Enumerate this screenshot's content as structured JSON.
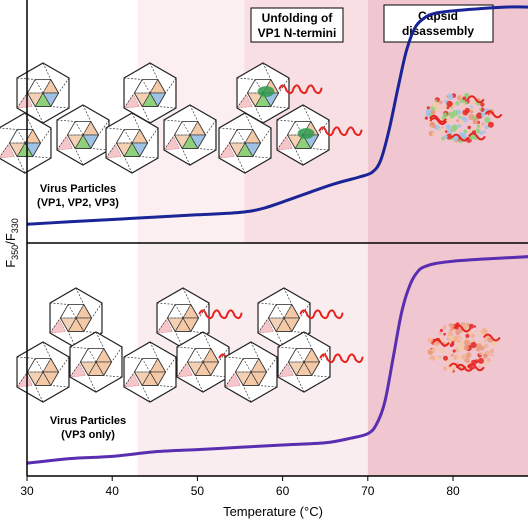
{
  "chart_data": [
    {
      "type": "line",
      "panel": "top",
      "xlabel": "Temperature (°C)",
      "ylabel": "F350/F330",
      "xlim": [
        30,
        89
      ],
      "series": [
        {
          "color": "#1a2496",
          "x": [
            30,
            35,
            40,
            45,
            50,
            55,
            58,
            62,
            66,
            69,
            70.5,
            71.5,
            72.5,
            73.5,
            74.5,
            75.5,
            76.5,
            77.5,
            79,
            82,
            86,
            89
          ],
          "y": [
            0.05,
            0.06,
            0.07,
            0.08,
            0.09,
            0.1,
            0.12,
            0.17,
            0.22,
            0.25,
            0.27,
            0.32,
            0.45,
            0.62,
            0.78,
            0.88,
            0.92,
            0.94,
            0.95,
            0.96,
            0.97,
            0.97
          ]
        }
      ],
      "annotations": [
        "Virus Particles",
        "(VP1, VP2, VP3)",
        "Unfolding of",
        "VP1 N-termini",
        "Capsid",
        "disassembly"
      ]
    },
    {
      "type": "line",
      "panel": "bottom",
      "xlabel": "Temperature (°C)",
      "ylabel": "F350/F330",
      "xlim": [
        30,
        89
      ],
      "series": [
        {
          "color": "#5a2eb0",
          "x": [
            30,
            35,
            40,
            45,
            50,
            55,
            60,
            65,
            68,
            70,
            71,
            72,
            73,
            74,
            75,
            76,
            77,
            78,
            80,
            84,
            89
          ],
          "y": [
            0.03,
            0.05,
            0.06,
            0.08,
            0.09,
            0.1,
            0.11,
            0.12,
            0.14,
            0.16,
            0.2,
            0.3,
            0.5,
            0.7,
            0.82,
            0.88,
            0.9,
            0.91,
            0.92,
            0.93,
            0.94
          ]
        }
      ],
      "annotations": [
        "Virus Particles",
        "(VP3 only)"
      ]
    }
  ],
  "x_ticks": [
    "30",
    "40",
    "50",
    "60",
    "70",
    "80"
  ],
  "x_tick_values": [
    30,
    40,
    50,
    60,
    70,
    80
  ],
  "axis": {
    "xlabel": "Temperature (°C)",
    "ylabel_main": "F",
    "ylabel_sub1": "350",
    "ylabel_slash": "/F",
    "ylabel_sub2": "330"
  },
  "regions": {
    "shading": [
      {
        "from": 43,
        "to": 55.5,
        "color": "#fbeff1",
        "panel": "top"
      },
      {
        "from": 55.5,
        "to": 70,
        "color": "#f7dfe4",
        "panel": "top"
      },
      {
        "from": 43,
        "to": 70,
        "color": "#faedf0",
        "panel": "bottom"
      },
      {
        "from": 70,
        "to": 89,
        "color": "#f0c6d1",
        "panel": "both"
      }
    ]
  },
  "labels": {
    "unfolding_line1": "Unfolding of",
    "unfolding_line2": "VP1 N-termini",
    "capsid_line1": "Capsid",
    "capsid_line2": "disassembly",
    "top_vp_line1": "Virus Particles",
    "top_vp_line2": "(VP1, VP2, VP3)",
    "bottom_vp_line1": "Virus Particles",
    "bottom_vp_line2": "(VP3 only)"
  },
  "colors": {
    "top_curve": "#1a2496",
    "bottom_curve": "#5a2eb0",
    "capsid_fill": "#f3c9a8",
    "vp1": "#9ec3e6",
    "vp2": "#8fd17a",
    "n_termini": "#e8221e"
  }
}
